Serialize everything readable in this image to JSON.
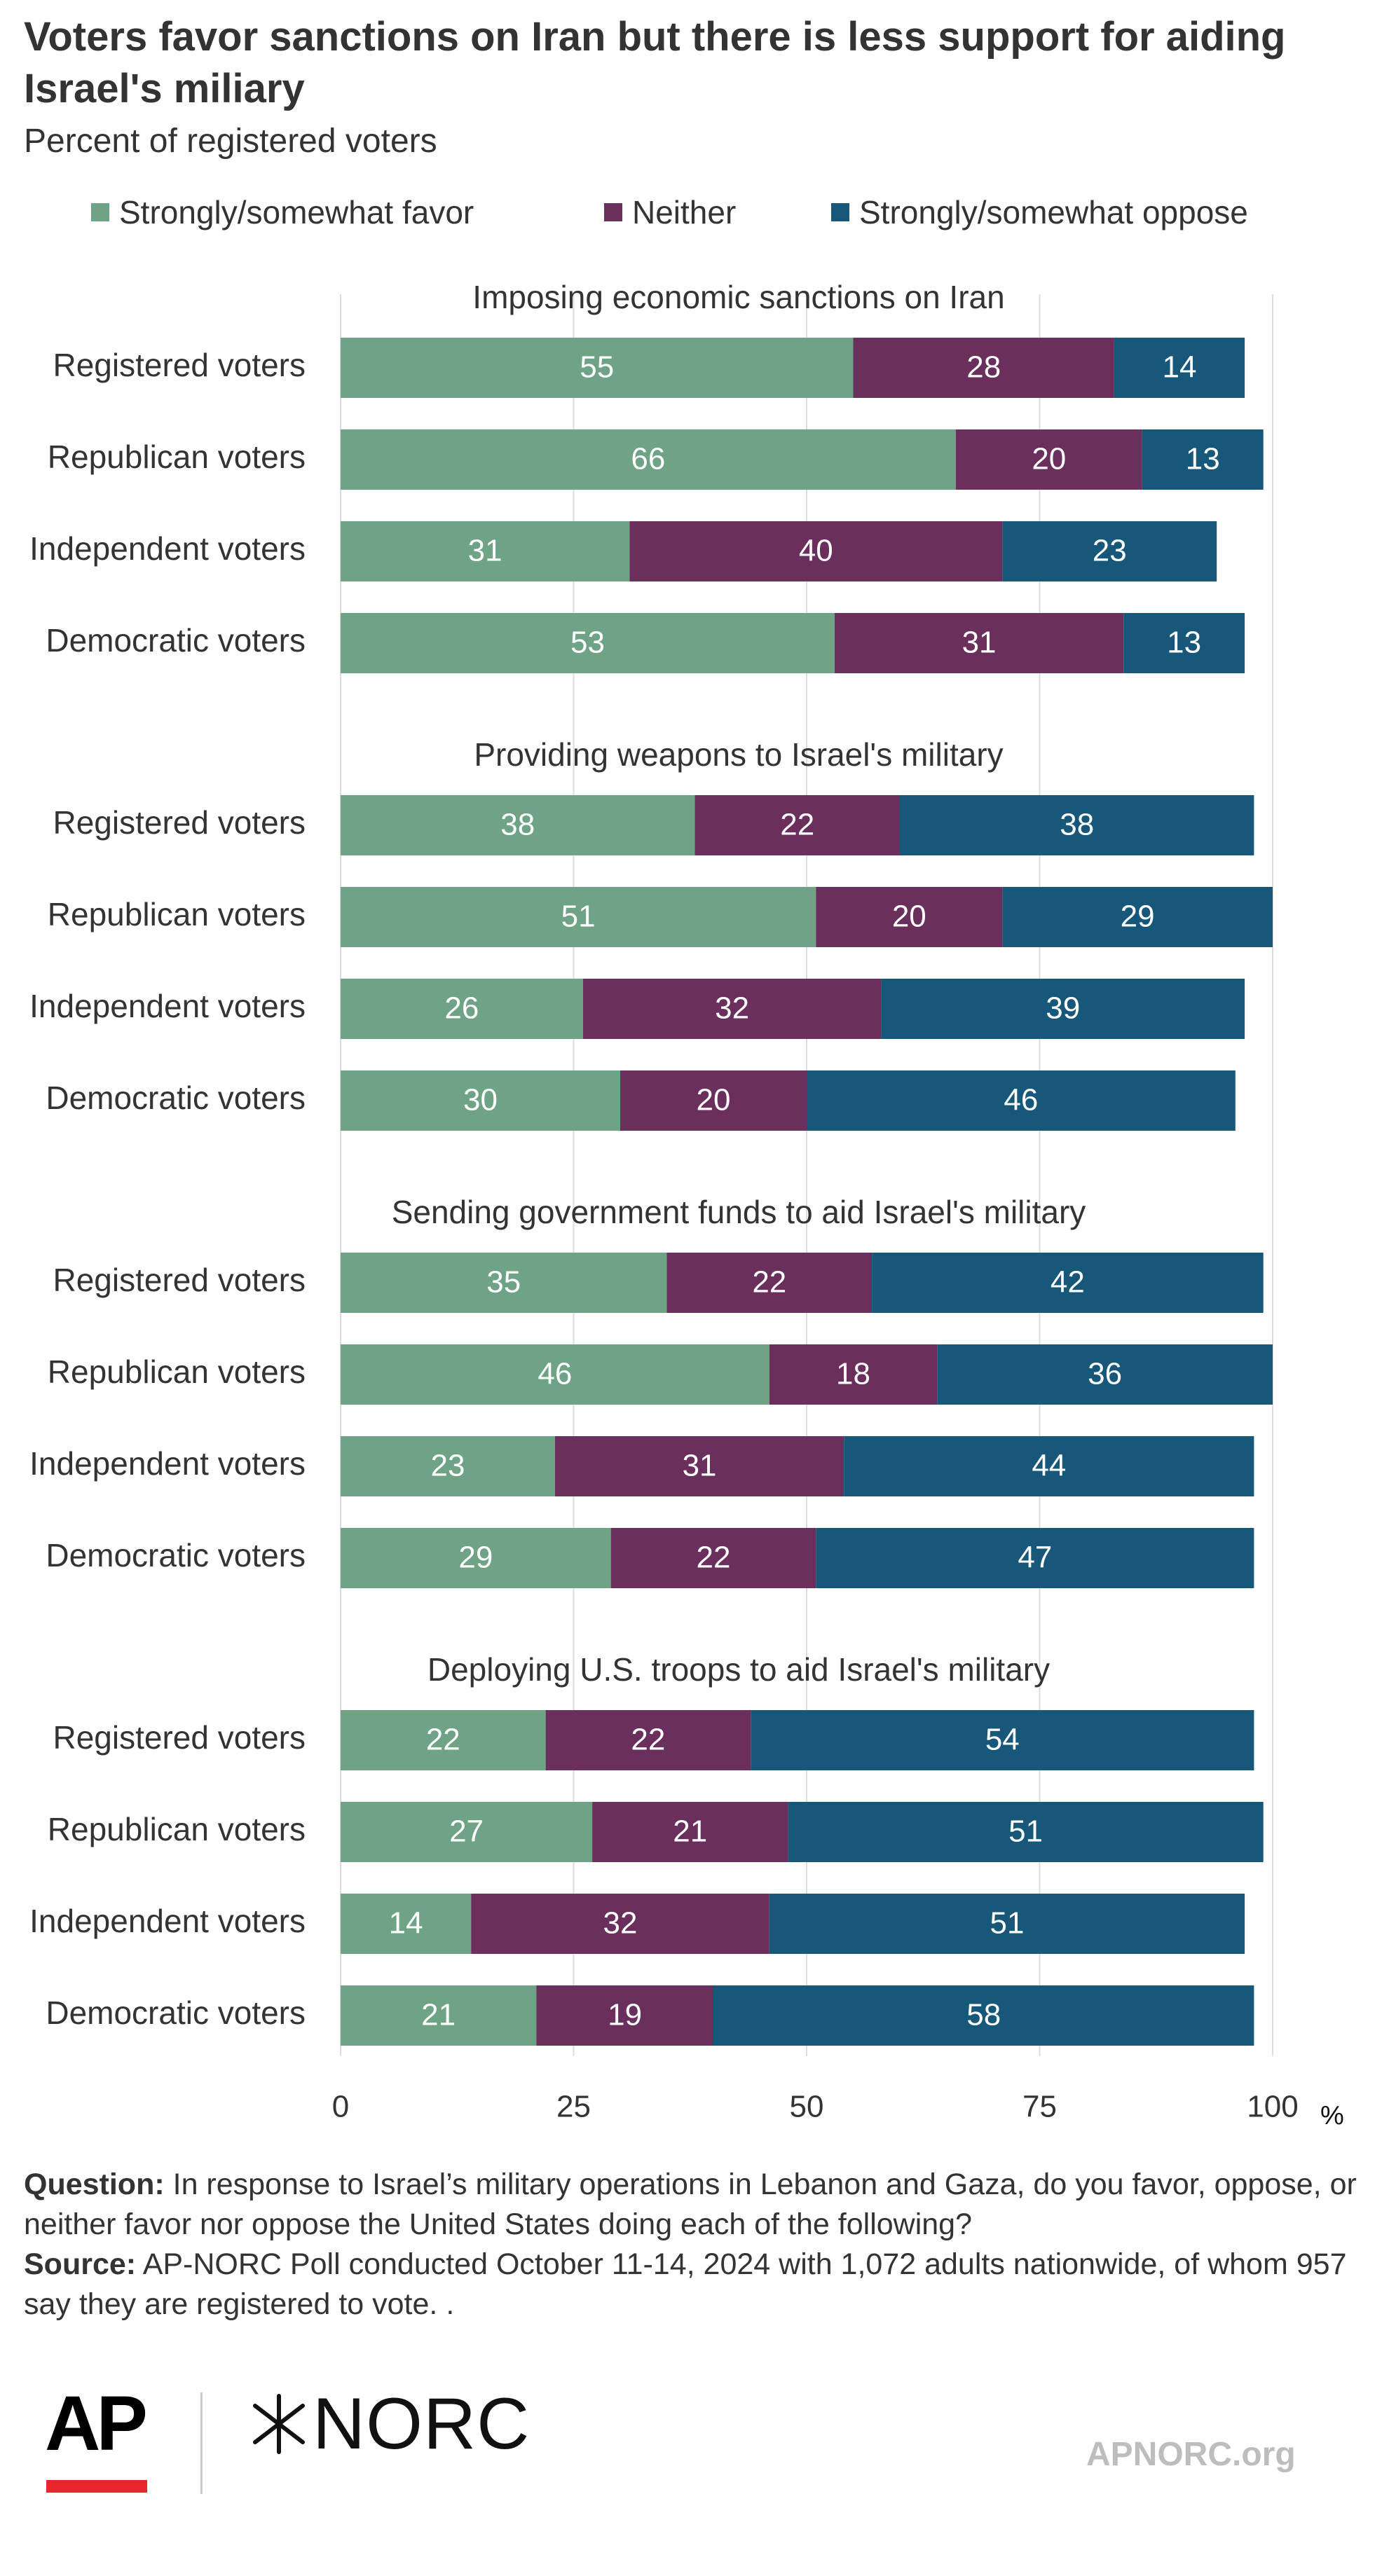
{
  "title": "Voters favor sanctions on Iran but there is less support for aiding Israel's miliary",
  "subtitle": "Percent of registered voters",
  "colors": {
    "favor": "#6fa386",
    "neither": "#6b2f5e",
    "oppose": "#16577a",
    "grid": "#dddddd",
    "text": "#333333"
  },
  "chart_data": {
    "type": "bar",
    "orientation": "horizontal",
    "stacked": true,
    "title": "Voters favor sanctions on Iran but there is less support for aiding Israel's miliary",
    "subtitle": "Percent of registered voters",
    "unit": "%",
    "xlim": [
      0,
      100
    ],
    "xticks": [
      "0",
      "25",
      "50",
      "75",
      "100"
    ],
    "grid": true,
    "legend_position": "top",
    "series": [
      {
        "name": "Strongly/somewhat favor",
        "key": "favor",
        "color": "#6fa386"
      },
      {
        "name": "Neither",
        "key": "neither",
        "color": "#6b2f5e"
      },
      {
        "name": "Strongly/somewhat oppose",
        "key": "oppose",
        "color": "#16577a"
      }
    ],
    "groups": [
      {
        "title": "Imposing economic sanctions on Iran",
        "rows": [
          {
            "label": "Registered voters",
            "favor": 55,
            "neither": 28,
            "oppose": 14
          },
          {
            "label": "Republican voters",
            "favor": 66,
            "neither": 20,
            "oppose": 13
          },
          {
            "label": "Independent voters",
            "favor": 31,
            "neither": 40,
            "oppose": 23
          },
          {
            "label": "Democratic voters",
            "favor": 53,
            "neither": 31,
            "oppose": 13
          }
        ]
      },
      {
        "title": "Providing weapons to Israel's military",
        "rows": [
          {
            "label": "Registered voters",
            "favor": 38,
            "neither": 22,
            "oppose": 38
          },
          {
            "label": "Republican voters",
            "favor": 51,
            "neither": 20,
            "oppose": 29
          },
          {
            "label": "Independent voters",
            "favor": 26,
            "neither": 32,
            "oppose": 39
          },
          {
            "label": "Democratic voters",
            "favor": 30,
            "neither": 20,
            "oppose": 46
          }
        ]
      },
      {
        "title": "Sending government funds to aid Israel's military",
        "rows": [
          {
            "label": "Registered voters",
            "favor": 35,
            "neither": 22,
            "oppose": 42
          },
          {
            "label": "Republican voters",
            "favor": 46,
            "neither": 18,
            "oppose": 36
          },
          {
            "label": "Independent voters",
            "favor": 23,
            "neither": 31,
            "oppose": 44
          },
          {
            "label": "Democratic voters",
            "favor": 29,
            "neither": 22,
            "oppose": 47
          }
        ]
      },
      {
        "title": "Deploying U.S. troops to aid Israel's military",
        "rows": [
          {
            "label": "Registered voters",
            "favor": 22,
            "neither": 22,
            "oppose": 54
          },
          {
            "label": "Republican voters",
            "favor": 27,
            "neither": 21,
            "oppose": 51
          },
          {
            "label": "Independent voters",
            "favor": 14,
            "neither": 32,
            "oppose": 51
          },
          {
            "label": "Democratic voters",
            "favor": 21,
            "neither": 19,
            "oppose": 58
          }
        ]
      }
    ]
  },
  "footer": {
    "question_label": "Question:",
    "question_text": "In response to Israel’s military operations in Lebanon and Gaza, do you favor, oppose, or neither favor nor oppose the United States doing each of the following?",
    "source_label": "Source:",
    "source_text": "AP-NORC Poll conducted October 11-14, 2024 with 1,072 adults nationwide, of whom 957 say they are registered to vote. ."
  },
  "logos": {
    "ap": "AP",
    "norc": "NORC",
    "site": "APNORC.org",
    "norc_mark": "norc-star-icon"
  }
}
